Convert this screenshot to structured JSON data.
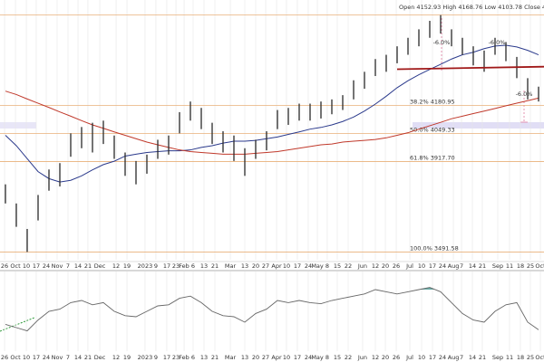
{
  "chart_data": [
    {
      "type": "ohlc",
      "header": "Open 4152.93 High 4168.76 Low 4103.78 Close 4117.37 Volu",
      "color": "#2a2a2a",
      "high": [
        3810,
        3720,
        3600,
        3760,
        3880,
        3910,
        4050,
        4080,
        4100,
        4110,
        4040,
        3960,
        3920,
        3950,
        4020,
        4040,
        4150,
        4200,
        4170,
        4100,
        4060,
        4040,
        3980,
        4020,
        4060,
        4160,
        4170,
        4190,
        4190,
        4200,
        4210,
        4230,
        4300,
        4340,
        4400,
        4420,
        4460,
        4500,
        4540,
        4580,
        4607.07,
        4540,
        4500,
        4460,
        4440,
        4500,
        4480,
        4410,
        4310,
        4270
      ],
      "low": [
        3720,
        3610,
        3491.58,
        3640,
        3780,
        3800,
        3940,
        3980,
        3960,
        4000,
        3930,
        3850,
        3810,
        3860,
        3930,
        3950,
        4050,
        4110,
        4070,
        4000,
        3960,
        3920,
        3850,
        3930,
        3970,
        4070,
        4090,
        4110,
        4110,
        4120,
        4140,
        4160,
        4210,
        4260,
        4320,
        4340,
        4380,
        4420,
        4460,
        4500,
        4520,
        4460,
        4420,
        4370,
        4340,
        4420,
        4390,
        4310,
        4210,
        4200
      ],
      "series": [
        {
          "color": "#2b3a8c",
          "values": [
            4041,
            3992,
            3931,
            3870,
            3837,
            3821,
            3829,
            3850,
            3878,
            3903,
            3919,
            3943,
            3952,
            3960,
            3964,
            3968,
            3968,
            3972,
            3984,
            3992,
            4004,
            4013,
            4013,
            4017,
            4025,
            4033,
            4045,
            4057,
            4070,
            4078,
            4090,
            4106,
            4127,
            4155,
            4188,
            4225,
            4265,
            4298,
            4326,
            4351,
            4375,
            4400,
            4420,
            4432,
            4449,
            4461,
            4465,
            4457,
            4441,
            4420
          ]
        },
        {
          "color": "#c0392b",
          "values": [
            4249,
            4233,
            4212,
            4192,
            4172,
            4151,
            4131,
            4110,
            4090,
            4074,
            4057,
            4041,
            4025,
            4009,
            3996,
            3984,
            3972,
            3964,
            3960,
            3956,
            3952,
            3952,
            3952,
            3956,
            3960,
            3964,
            3972,
            3980,
            3988,
            3996,
            4000,
            4009,
            4013,
            4017,
            4021,
            4029,
            4041,
            4053,
            4070,
            4086,
            4102,
            4119,
            4131,
            4143,
            4155,
            4167,
            4180,
            4192,
            4204,
            4216
          ]
        }
      ],
      "high_level": 4607.07,
      "levels": [
        {
          "value": 4180.95,
          "label": "38.2% 4180.95"
        },
        {
          "value": 4049.33,
          "label": "50.0% 4049.33"
        },
        {
          "value": 3917.7,
          "label": "61.8% 3917.70"
        },
        {
          "value": 3491.58,
          "label": "100.0% 3491.58"
        }
      ],
      "level_color": "#e8b07a",
      "trendline": {
        "x": [
          36,
          49.5
        ],
        "values": [
          4352,
          4364
        ],
        "color": "#a01818"
      },
      "annotations": [
        "-6.0%",
        "-6.0%",
        "-6.0%"
      ],
      "xlim": [
        -0.5,
        49.5
      ],
      "ylim": [
        3455,
        4678
      ],
      "grid": true,
      "xticks": [
        {
          "value": -0.08,
          "label": "26"
        },
        {
          "value": 0.92,
          "label": "Oct"
        },
        {
          "value": 1.92,
          "label": "10"
        },
        {
          "value": 2.83,
          "label": "17"
        },
        {
          "value": 3.75,
          "label": "24"
        },
        {
          "value": 4.75,
          "label": "Nov"
        },
        {
          "value": 5.75,
          "label": "7"
        },
        {
          "value": 6.67,
          "label": "14"
        },
        {
          "value": 7.58,
          "label": "21"
        },
        {
          "value": 8.67,
          "label": "Dec"
        },
        {
          "value": 10.17,
          "label": "12"
        },
        {
          "value": 11.17,
          "label": "19"
        },
        {
          "value": 12.83,
          "label": "2023"
        },
        {
          "value": 13.83,
          "label": "9"
        },
        {
          "value": 14.83,
          "label": "17"
        },
        {
          "value": 15.67,
          "label": "23"
        },
        {
          "value": 16.42,
          "label": "Feb"
        },
        {
          "value": 17.25,
          "label": "6"
        },
        {
          "value": 18.25,
          "label": "13"
        },
        {
          "value": 19.25,
          "label": "21"
        },
        {
          "value": 20.67,
          "label": "Mar"
        },
        {
          "value": 22,
          "label": "13"
        },
        {
          "value": 23,
          "label": "20"
        },
        {
          "value": 23.92,
          "label": "27"
        },
        {
          "value": 24.92,
          "label": "Apr"
        },
        {
          "value": 25.83,
          "label": "10"
        },
        {
          "value": 26.83,
          "label": "17"
        },
        {
          "value": 27.83,
          "label": "24"
        },
        {
          "value": 28.67,
          "label": "May"
        },
        {
          "value": 29.58,
          "label": "8"
        },
        {
          "value": 30.5,
          "label": "15"
        },
        {
          "value": 31.5,
          "label": "22"
        },
        {
          "value": 32.83,
          "label": "Jun"
        },
        {
          "value": 34,
          "label": "12"
        },
        {
          "value": 34.92,
          "label": "20"
        },
        {
          "value": 35.92,
          "label": "26"
        },
        {
          "value": 37.17,
          "label": "Jul"
        },
        {
          "value": 38.25,
          "label": "10"
        },
        {
          "value": 39.25,
          "label": "17"
        },
        {
          "value": 40.17,
          "label": "24"
        },
        {
          "value": 41.17,
          "label": "Aug"
        },
        {
          "value": 41.92,
          "label": "7"
        },
        {
          "value": 42.92,
          "label": "14"
        },
        {
          "value": 43.83,
          "label": "21"
        },
        {
          "value": 45.25,
          "label": "Sep"
        },
        {
          "value": 46.33,
          "label": "11"
        },
        {
          "value": 47.33,
          "label": "18"
        },
        {
          "value": 48.25,
          "label": "25"
        },
        {
          "value": 49.17,
          "label": "Oct"
        }
      ]
    },
    {
      "type": "line",
      "color": "#666666",
      "values": [
        38,
        35,
        32,
        42,
        50,
        52,
        58,
        60,
        56,
        58,
        50,
        46,
        45,
        50,
        55,
        56,
        62,
        64,
        58,
        50,
        46,
        45,
        40,
        48,
        52,
        60,
        58,
        60,
        58,
        57,
        60,
        62,
        64,
        66,
        70,
        68,
        66,
        68,
        70,
        72,
        68,
        58,
        48,
        42,
        40,
        50,
        56,
        58,
        40,
        33
      ],
      "overbought": 70,
      "fill_color": "#4f9e98",
      "ylim": [
        15,
        85
      ]
    }
  ]
}
